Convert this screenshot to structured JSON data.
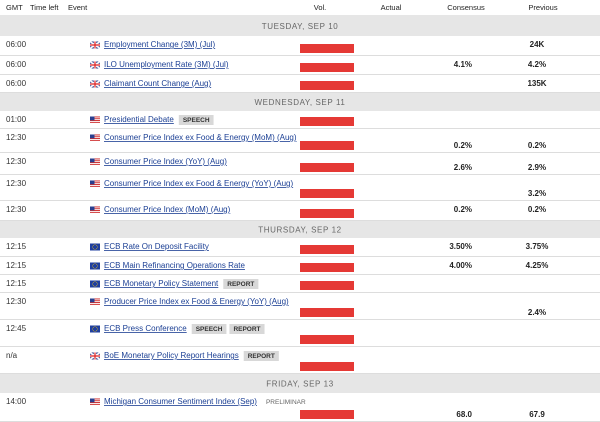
{
  "header": {
    "columns": [
      "GMT",
      "Time left",
      "Event",
      "Vol.",
      "Actual",
      "Consensus",
      "Previous"
    ]
  },
  "days": [
    {
      "label": "TUESDAY, SEP 10",
      "events": [
        {
          "time": "06:00",
          "flag": "gb",
          "event": "Employment Change (3M) (Jul)",
          "previous": "24K"
        },
        {
          "time": "06:00",
          "flag": "gb",
          "event": "ILO Unemployment Rate (3M) (Jul)",
          "consensus": "4.1%",
          "previous": "4.2%"
        },
        {
          "time": "06:00",
          "flag": "gb",
          "event": "Claimant Count Change (Aug)",
          "previous": "135K"
        }
      ]
    },
    {
      "label": "WEDNESDAY, SEP 11",
      "events": [
        {
          "time": "01:00",
          "flag": "us",
          "event": "Presidential Debate",
          "tags": [
            "SPEECH"
          ]
        },
        {
          "time": "12:30",
          "flag": "us",
          "event": "Consumer Price Index ex Food & Energy (MoM) (Aug)",
          "consensus": "0.2%",
          "previous": "0.2%"
        },
        {
          "time": "12:30",
          "flag": "us",
          "event": "Consumer Price Index (YoY) (Aug)",
          "consensus": "2.6%",
          "previous": "2.9%"
        },
        {
          "time": "12:30",
          "flag": "us",
          "event": "Consumer Price Index ex Food & Energy (YoY) (Aug)",
          "previous": "3.2%"
        },
        {
          "time": "12:30",
          "flag": "us",
          "event": "Consumer Price Index (MoM) (Aug)",
          "consensus": "0.2%",
          "previous": "0.2%"
        }
      ]
    },
    {
      "label": "THURSDAY, SEP 12",
      "events": [
        {
          "time": "12:15",
          "flag": "eu",
          "event": "ECB Rate On Deposit Facility",
          "consensus": "3.50%",
          "previous": "3.75%"
        },
        {
          "time": "12:15",
          "flag": "eu",
          "event": "ECB Main Refinancing Operations Rate",
          "consensus": "4.00%",
          "previous": "4.25%"
        },
        {
          "time": "12:15",
          "flag": "eu",
          "event": "ECB Monetary Policy Statement",
          "tags": [
            "REPORT"
          ]
        },
        {
          "time": "12:30",
          "flag": "us",
          "event": "Producer Price Index ex Food & Energy (YoY) (Aug)",
          "previous": "2.4%"
        },
        {
          "time": "12:45",
          "flag": "eu",
          "event": "ECB Press Conference",
          "tags": [
            "SPEECH",
            "REPORT"
          ]
        },
        {
          "time": "n/a",
          "flag": "gb",
          "event": "BoE Monetary Policy Report Hearings",
          "tags": [
            "REPORT"
          ]
        }
      ]
    },
    {
      "label": "FRIDAY, SEP 13",
      "events": [
        {
          "time": "14:00",
          "flag": "us",
          "event": "Michigan Consumer Sentiment Index (Sep)",
          "tags": [
            "PRELIMINAR"
          ],
          "consensus": "68.0",
          "previous": "67.9"
        }
      ]
    }
  ]
}
